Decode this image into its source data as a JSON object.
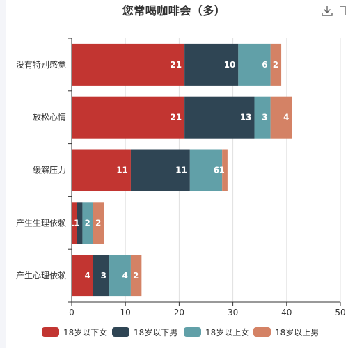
{
  "title": "您常喝咖啡会（多）",
  "toolbox": {
    "download_icon": "download-icon"
  },
  "chart_data": {
    "type": "bar",
    "orientation": "horizontal",
    "stacked": true,
    "categories": [
      "没有特别感觉",
      "放松心情",
      "缓解压力",
      "产生生理依赖",
      "产生心理依赖"
    ],
    "series": [
      {
        "name": "18岁以下女",
        "color": "#c23531",
        "values": [
          21,
          21,
          11,
          1,
          4
        ]
      },
      {
        "name": "18岁以下男",
        "color": "#2f4554",
        "values": [
          10,
          13,
          11,
          1,
          3
        ]
      },
      {
        "name": "18岁以上女",
        "color": "#61a0a8",
        "values": [
          6,
          3,
          6,
          2,
          4
        ]
      },
      {
        "name": "18岁以上男",
        "color": "#d48265",
        "values": [
          2,
          4,
          1,
          2,
          2
        ]
      }
    ],
    "xlim": [
      0,
      50
    ],
    "xticks": [
      "0",
      "10",
      "20",
      "30",
      "40",
      "50"
    ],
    "grid": true,
    "legend_position": "bottom"
  }
}
